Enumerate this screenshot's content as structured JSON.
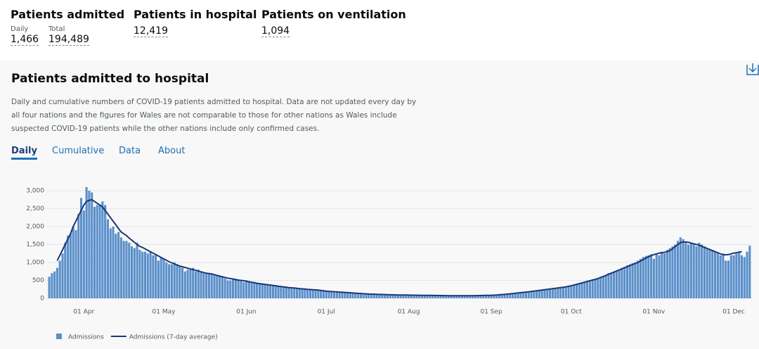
{
  "header": {
    "metrics": [
      {
        "title": "Patients admitted",
        "items": [
          {
            "label": "Daily",
            "value": "1,466"
          },
          {
            "label": "Total",
            "value": "194,489"
          }
        ]
      },
      {
        "title": "Patients in hospital",
        "items": [
          {
            "value": "12,419"
          }
        ]
      },
      {
        "title": "Patients on ventilation",
        "items": [
          {
            "value": "1,094"
          }
        ]
      }
    ]
  },
  "card": {
    "title": "Patients admitted to hospital",
    "description": [
      "Daily and cumulative numbers of COVID-19 patients admitted to hospital. Data are not updated every day by",
      "all four nations and the figures for Wales are not comparable to those for other nations as Wales include",
      "suspected COVID-19 patients while the other nations include only confirmed cases."
    ],
    "tabs": [
      "Daily",
      "Cumulative",
      "Data",
      "About"
    ],
    "active_tab": 0
  },
  "chart_data": {
    "type": "bar",
    "categories": [
      null,
      null,
      null,
      null,
      null,
      null,
      null,
      null,
      null,
      null,
      null,
      null,
      null,
      "01 Apr",
      null,
      null,
      null,
      null,
      null,
      null,
      null,
      null,
      null,
      null,
      null,
      null,
      null,
      null,
      null,
      null,
      null,
      null,
      null,
      null,
      null,
      null,
      null,
      null,
      null,
      null,
      null,
      null,
      null,
      "01 May",
      null,
      null,
      null,
      null,
      null,
      null,
      null,
      null,
      null,
      null,
      null,
      null,
      null,
      null,
      null,
      null,
      null,
      null,
      null,
      null,
      null,
      null,
      null,
      null,
      null,
      null,
      null,
      null,
      null,
      null,
      "01 Jun",
      null,
      null,
      null,
      null,
      null,
      null,
      null,
      null,
      null,
      null,
      null,
      null,
      null,
      null,
      null,
      null,
      null,
      null,
      null,
      null,
      null,
      null,
      null,
      null,
      null,
      null,
      null,
      null,
      null,
      "01 Jul",
      null,
      null,
      null,
      null,
      null,
      null,
      null,
      null,
      null,
      null,
      null,
      null,
      null,
      null,
      null,
      null,
      null,
      null,
      null,
      null,
      null,
      null,
      null,
      null,
      null,
      null,
      null,
      null,
      null,
      null,
      "01 Aug",
      null,
      null,
      null,
      null,
      null,
      null,
      null,
      null,
      null,
      null,
      null,
      null,
      null,
      null,
      null,
      null,
      null,
      null,
      null,
      null,
      null,
      null,
      null,
      null,
      null,
      null,
      null,
      null,
      null,
      null,
      "01 Sep",
      null,
      null,
      null,
      null,
      null,
      null,
      null,
      null,
      null,
      null,
      null,
      null,
      null,
      null,
      null,
      null,
      null,
      null,
      null,
      null,
      null,
      null,
      null,
      null,
      null,
      null,
      null,
      null,
      null,
      "01 Oct",
      null,
      null,
      null,
      null,
      null,
      null,
      null,
      null,
      null,
      null,
      null,
      null,
      null,
      null,
      null,
      null,
      null,
      null,
      null,
      null,
      null,
      null,
      null,
      null,
      null,
      null,
      null,
      null,
      null,
      null,
      "01 Nov",
      null,
      null,
      null,
      null,
      null,
      null,
      null,
      null,
      null,
      null,
      null,
      null,
      null,
      null,
      null,
      null,
      null,
      null,
      null,
      null,
      null,
      null,
      null,
      null,
      null,
      null,
      null,
      null,
      null,
      "01 Dec",
      null,
      null,
      null,
      null,
      null,
      null
    ],
    "series": [
      {
        "name": "Admissions",
        "type": "bar",
        "color": "#5a8fca",
        "values": [
          600,
          700,
          750,
          850,
          1050,
          1250,
          1550,
          1750,
          1800,
          2000,
          1900,
          2350,
          2800,
          2450,
          3100,
          3000,
          2950,
          2550,
          2600,
          2600,
          2700,
          2600,
          2200,
          1950,
          2000,
          1800,
          1850,
          1700,
          1600,
          1600,
          1550,
          1450,
          1400,
          1550,
          1350,
          1300,
          1300,
          1250,
          1300,
          1200,
          1200,
          1050,
          1150,
          1100,
          1000,
          950,
          950,
          1000,
          950,
          900,
          850,
          750,
          800,
          800,
          850,
          750,
          800,
          750,
          700,
          700,
          700,
          700,
          650,
          650,
          620,
          600,
          550,
          500,
          500,
          550,
          550,
          520,
          480,
          450,
          480,
          480,
          460,
          450,
          430,
          420,
          400,
          380,
          380,
          370,
          360,
          350,
          340,
          320,
          320,
          330,
          310,
          300,
          290,
          280,
          270,
          280,
          260,
          260,
          250,
          240,
          250,
          230,
          230,
          210,
          200,
          200,
          190,
          190,
          180,
          170,
          170,
          160,
          160,
          150,
          150,
          140,
          140,
          130,
          130,
          120,
          120,
          120,
          110,
          110,
          110,
          100,
          100,
          100,
          100,
          100,
          100,
          95,
          95,
          95,
          95,
          90,
          90,
          90,
          85,
          85,
          85,
          85,
          80,
          80,
          80,
          80,
          80,
          75,
          75,
          75,
          75,
          75,
          75,
          70,
          70,
          70,
          70,
          70,
          70,
          75,
          75,
          75,
          75,
          80,
          80,
          80,
          90,
          95,
          100,
          100,
          110,
          110,
          120,
          130,
          140,
          150,
          150,
          160,
          170,
          180,
          190,
          200,
          210,
          220,
          230,
          240,
          250,
          260,
          270,
          280,
          290,
          290,
          300,
          310,
          320,
          330,
          350,
          380,
          400,
          420,
          450,
          470,
          480,
          500,
          520,
          540,
          560,
          600,
          620,
          650,
          700,
          720,
          750,
          760,
          800,
          850,
          880,
          920,
          950,
          980,
          1000,
          1050,
          1100,
          1150,
          1180,
          1200,
          1230,
          1100,
          1250,
          1200,
          1300,
          1250,
          1350,
          1400,
          1450,
          1500,
          1600,
          1700,
          1650,
          1550,
          1500,
          1550,
          1500,
          1450,
          1550,
          1500,
          1450,
          1400,
          1350,
          1350,
          1300,
          1250,
          1200,
          1250,
          1050,
          1050,
          1200,
          1200,
          1250,
          1300,
          1200,
          1150,
          1300,
          1466
        ]
      },
      {
        "name": "Admissions (7-day average)",
        "type": "line",
        "color": "#1c3774",
        "values": [
          null,
          null,
          null,
          1050,
          1200,
          1350,
          1500,
          1650,
          1800,
          2000,
          2150,
          2300,
          2450,
          2600,
          2700,
          2730,
          2750,
          2700,
          2650,
          2600,
          2550,
          2450,
          2350,
          2250,
          2150,
          2050,
          1950,
          1850,
          1800,
          1750,
          1680,
          1620,
          1560,
          1500,
          1450,
          1420,
          1380,
          1340,
          1300,
          1260,
          1220,
          1180,
          1140,
          1100,
          1060,
          1020,
          990,
          960,
          930,
          900,
          880,
          860,
          840,
          820,
          800,
          780,
          760,
          740,
          720,
          700,
          690,
          680,
          660,
          640,
          620,
          600,
          580,
          560,
          550,
          540,
          520,
          510,
          500,
          490,
          480,
          460,
          450,
          440,
          420,
          410,
          400,
          390,
          380,
          370,
          360,
          350,
          340,
          330,
          320,
          310,
          300,
          295,
          290,
          280,
          270,
          265,
          260,
          250,
          245,
          240,
          235,
          230,
          220,
          210,
          200,
          195,
          190,
          185,
          180,
          175,
          170,
          165,
          160,
          155,
          150,
          145,
          140,
          135,
          130,
          125,
          120,
          118,
          115,
          112,
          110,
          108,
          105,
          102,
          100,
          98,
          96,
          95,
          94,
          93,
          92,
          90,
          89,
          88,
          87,
          86,
          85,
          84,
          83,
          82,
          81,
          80,
          79,
          78,
          77,
          76,
          75,
          74,
          73,
          72,
          72,
          72,
          72,
          73,
          74,
          75,
          76,
          77,
          78,
          80,
          82,
          84,
          85,
          90,
          95,
          100,
          105,
          110,
          118,
          126,
          134,
          142,
          150,
          158,
          166,
          174,
          182,
          190,
          200,
          210,
          220,
          230,
          240,
          250,
          260,
          270,
          280,
          290,
          300,
          310,
          320,
          335,
          350,
          370,
          390,
          410,
          430,
          450,
          470,
          490,
          510,
          530,
          550,
          580,
          610,
          640,
          670,
          700,
          730,
          760,
          790,
          820,
          850,
          880,
          910,
          940,
          970,
          1000,
          1040,
          1080,
          1120,
          1160,
          1190,
          1220,
          1240,
          1260,
          1270,
          1280,
          1300,
          1330,
          1380,
          1440,
          1500,
          1550,
          1570,
          1570,
          1560,
          1540,
          1520,
          1500,
          1480,
          1450,
          1420,
          1390,
          1360,
          1330,
          1300,
          1270,
          1240,
          1220,
          1210,
          1220,
          1240,
          1260,
          1270,
          1290,
          1300,
          null,
          null,
          null
        ]
      }
    ],
    "ylim": [
      0,
      3000
    ],
    "yticks": [
      0,
      500,
      {
        "value": 1000,
        "label": "1,000"
      },
      {
        "value": 1500,
        "label": "1,500"
      },
      {
        "value": 2000,
        "label": "2,000"
      },
      {
        "value": 2500,
        "label": "2,500"
      },
      {
        "value": 3000,
        "label": "3,000"
      }
    ],
    "grid": true,
    "legend": "bottom-left"
  }
}
